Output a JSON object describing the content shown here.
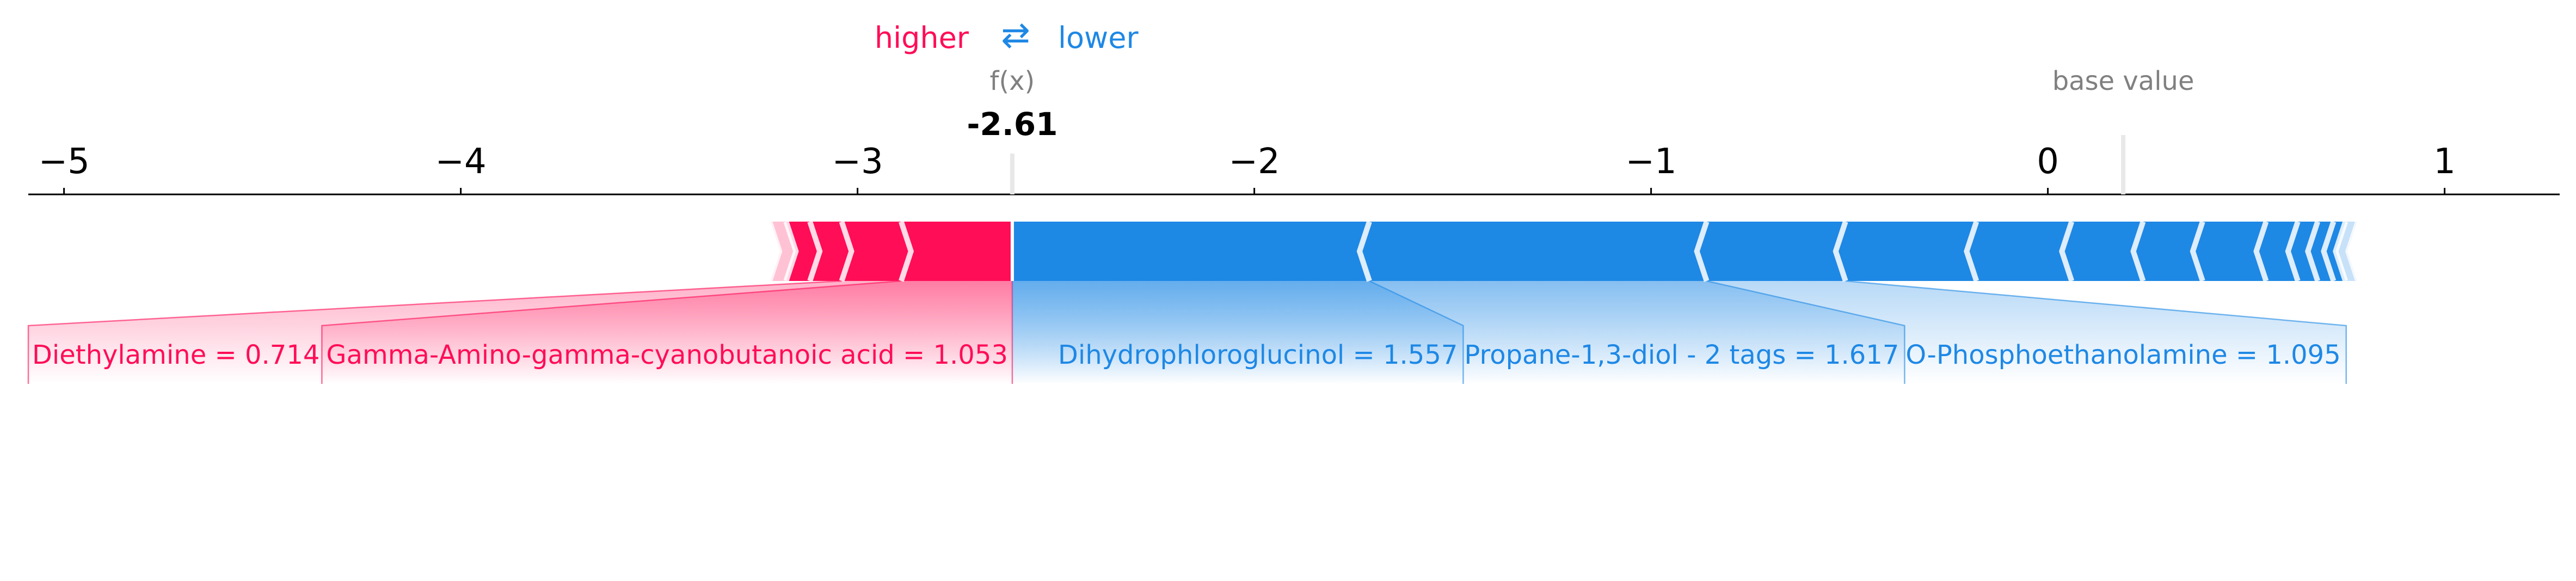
{
  "chart_data": {
    "type": "force",
    "legend": {
      "higher": "higher",
      "arrow": "⇄",
      "lower": "lower",
      "higher_color": "#ff0d57",
      "lower_color": "#1e88e5"
    },
    "output": {
      "label": "f(x)",
      "value": -2.61,
      "value_text": "-2.61"
    },
    "base": {
      "label": "base value",
      "value": 0.19
    },
    "xlim": [
      -5.09,
      1.29
    ],
    "ticks": [
      {
        "value": -5,
        "label": "−5"
      },
      {
        "value": -4,
        "label": "−4"
      },
      {
        "value": -3,
        "label": "−3"
      },
      {
        "value": -2,
        "label": "−2"
      },
      {
        "value": -1,
        "label": "−1"
      },
      {
        "value": 0,
        "label": "0"
      },
      {
        "value": 1,
        "label": "1"
      }
    ],
    "higher_features": [
      {
        "label": "Gamma-Amino-gamma-cyanobutanoic acid = 1.053",
        "start": -2.61,
        "end": -2.89
      },
      {
        "label": "Diethylamine = 0.714",
        "start": -2.89,
        "end": -3.04
      },
      {
        "start": -3.04,
        "end": -3.12
      },
      {
        "start": -3.12,
        "end": -3.18
      },
      {
        "start": -3.18,
        "end": -3.22
      }
    ],
    "lower_features": [
      {
        "label": "Dihydrophloroglucinol = 1.557",
        "start": -2.61,
        "end": -1.71
      },
      {
        "label": "Propane-1,3-diol - 2 tags = 1.617",
        "start": -1.71,
        "end": -0.86
      },
      {
        "label": "O-Phosphoethanolamine = 1.095",
        "start": -0.86,
        "end": -0.51
      },
      {
        "start": -0.51,
        "end": -0.18
      },
      {
        "start": -0.18,
        "end": 0.06
      },
      {
        "start": 0.06,
        "end": 0.24
      },
      {
        "start": 0.24,
        "end": 0.39
      },
      {
        "start": 0.39,
        "end": 0.55
      },
      {
        "start": 0.55,
        "end": 0.63
      },
      {
        "start": 0.63,
        "end": 0.68
      },
      {
        "start": 0.68,
        "end": 0.72
      },
      {
        "start": 0.72,
        "end": 0.75
      },
      {
        "start": 0.75,
        "end": 0.78
      }
    ]
  }
}
